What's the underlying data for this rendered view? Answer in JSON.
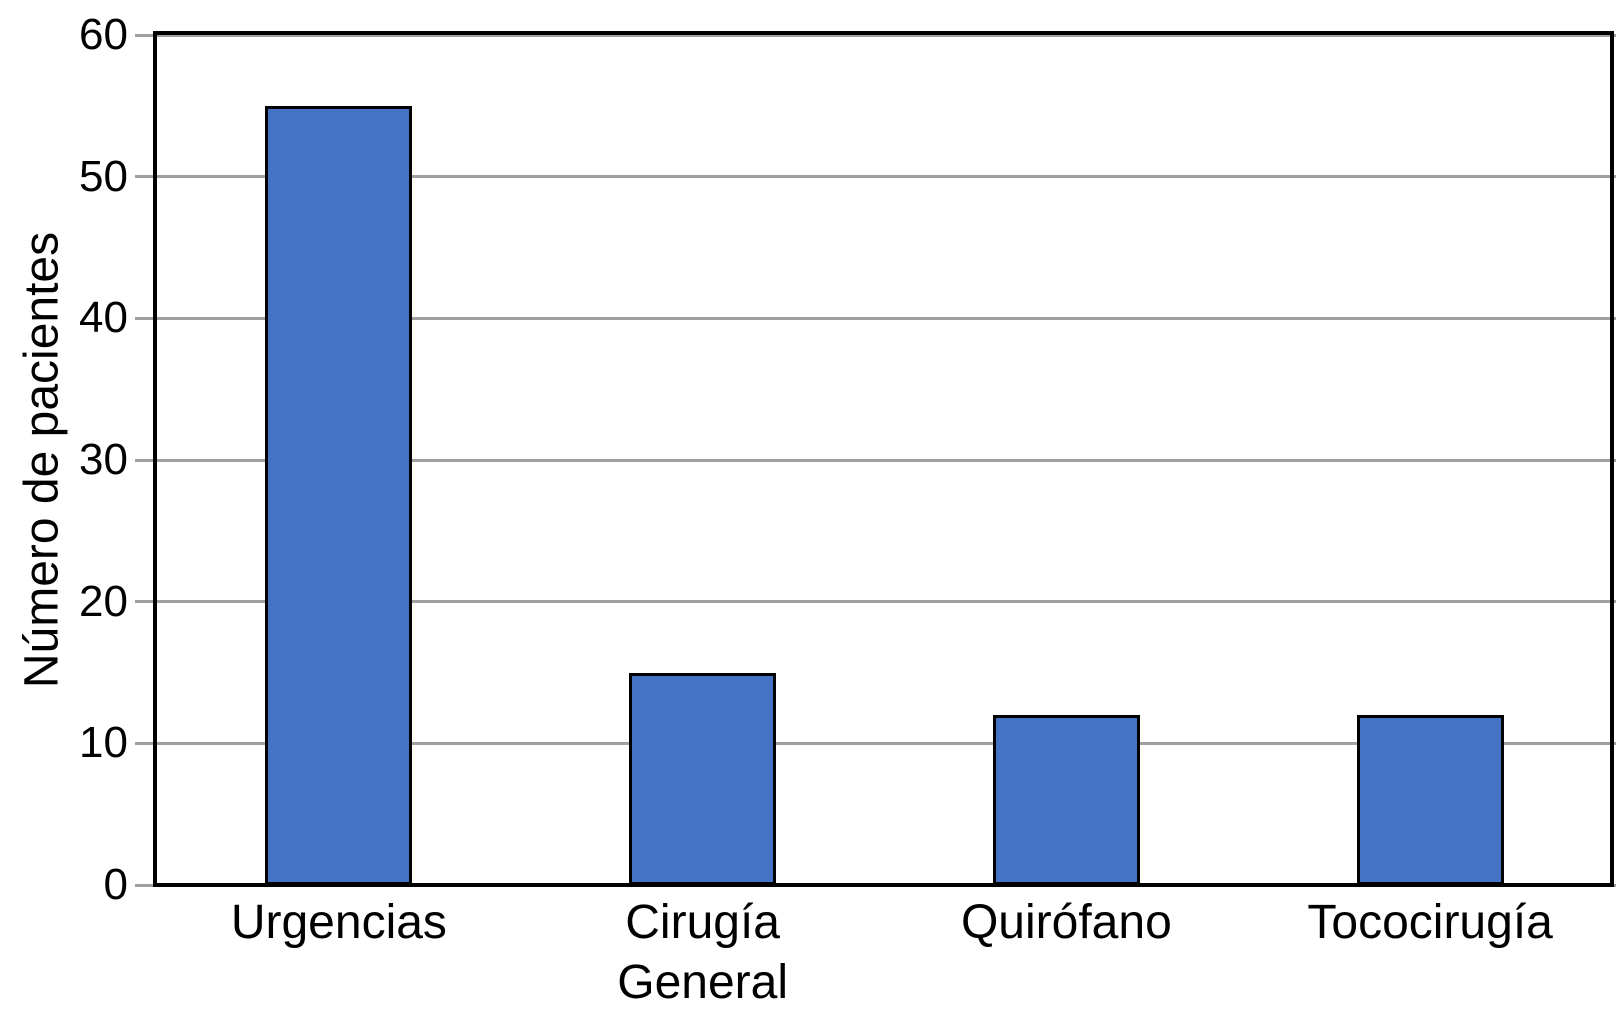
{
  "chart_data": {
    "type": "bar",
    "title": "",
    "categories": [
      "Urgencias",
      "Cirugía\nGeneral",
      "Quirófano",
      "Tococirugía"
    ],
    "values": [
      55,
      15,
      12,
      12
    ],
    "xlabel": "",
    "ylabel": "Número de pacientes",
    "ylim": [
      0,
      60
    ],
    "yticks": [
      0,
      10,
      20,
      30,
      40,
      50,
      60
    ],
    "grid": true,
    "legend_position": "none",
    "colors": {
      "bar_fill": "#4472C4",
      "bar_border": "#000000",
      "axis": "#000000",
      "gridline": "#A0A0A0",
      "text": "#000000",
      "background": "#FFFFFF"
    }
  }
}
